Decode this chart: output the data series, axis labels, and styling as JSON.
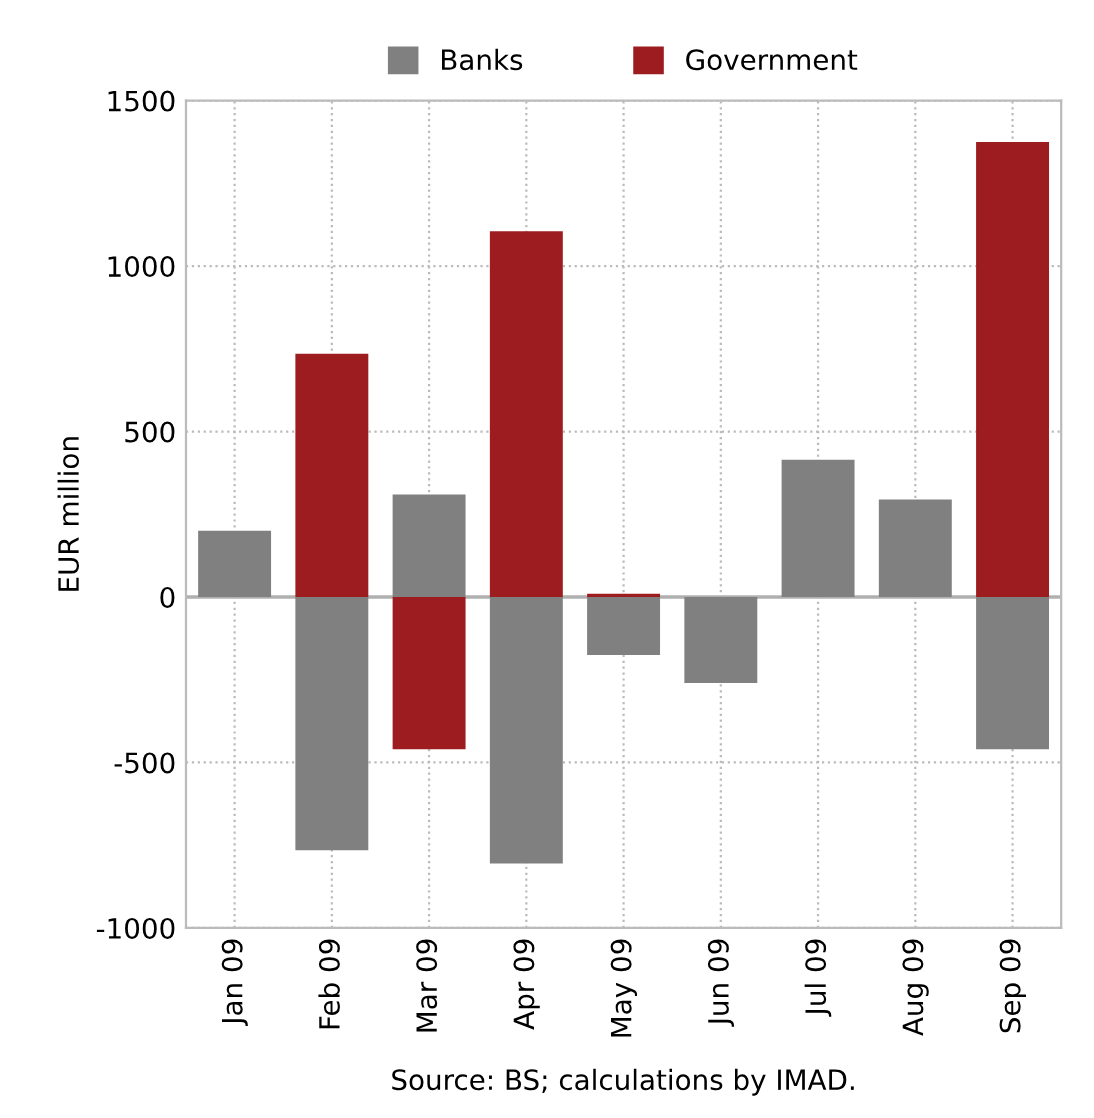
{
  "chart_data": {
    "type": "bar",
    "ylabel": "EUR million",
    "categories": [
      "Jan 09",
      "Feb 09",
      "Mar 09",
      "Apr 09",
      "May 09",
      "Jun 09",
      "Jul 09",
      "Aug 09",
      "Sep 09"
    ],
    "series": [
      {
        "name": "Banks",
        "color": "#808080",
        "values": [
          200,
          -765,
          310,
          -805,
          -175,
          -260,
          415,
          295,
          -460
        ]
      },
      {
        "name": "Government",
        "color": "#9c1c20",
        "values": [
          null,
          735,
          -460,
          1105,
          10,
          0,
          null,
          null,
          1375
        ]
      }
    ],
    "ylim": [
      -1000,
      1500
    ],
    "yticks": [
      -1000,
      -500,
      0,
      500,
      1000,
      1500
    ],
    "grid": true,
    "legend": "top",
    "annotations": [
      "Source: BS; calculations by IMAD."
    ]
  }
}
